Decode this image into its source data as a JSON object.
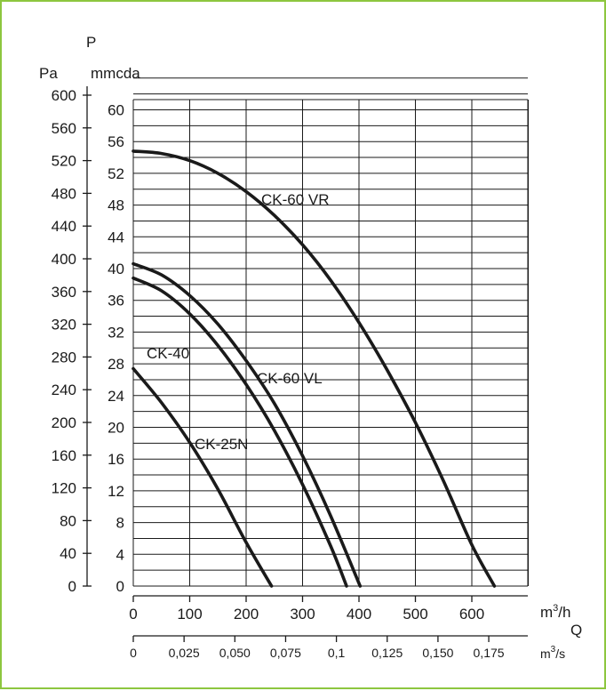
{
  "chart_data": {
    "type": "line",
    "axis": {
      "p_symbol": "P",
      "pa_unit": "Pa",
      "mmcda_unit": "mmcda",
      "q_symbol": "Q",
      "mh_unit_base": "m",
      "mh_unit_sup": "3",
      "mh_unit_tail": "/h",
      "ms_unit_base": "m",
      "ms_unit_sup": "3",
      "ms_unit_tail": "/s",
      "pa_ticks": [
        "600",
        "560",
        "520",
        "480",
        "440",
        "400",
        "360",
        "320",
        "280",
        "240",
        "200",
        "160",
        "120",
        "80",
        "40",
        "0"
      ],
      "mmcda_ticks": [
        "60",
        "56",
        "52",
        "48",
        "44",
        "40",
        "36",
        "32",
        "28",
        "24",
        "20",
        "16",
        "12",
        "8",
        "4",
        "0"
      ],
      "mh_ticks": [
        "0",
        "100",
        "200",
        "300",
        "400",
        "500",
        "600"
      ],
      "ms_ticks": [
        "0",
        "0,025",
        "0,050",
        "0,075",
        "0,1",
        "0,125",
        "0,150",
        "0,175"
      ],
      "x_range_m3h": [
        0,
        700
      ],
      "y_range_mmcda": [
        0,
        64
      ]
    },
    "series": [
      {
        "name": "CK-60 VR",
        "x": [
          0,
          50,
          100,
          150,
          200,
          250,
          300,
          350,
          400,
          450,
          500,
          550,
          600,
          640
        ],
        "y": [
          54.8,
          54.5,
          53.6,
          52.0,
          49.7,
          46.7,
          43.0,
          38.5,
          33.2,
          27.2,
          20.6,
          13.2,
          5.2,
          0
        ]
      },
      {
        "name": "CK-60 VL",
        "x": [
          0,
          50,
          100,
          150,
          200,
          250,
          300,
          350,
          402
        ],
        "y": [
          40.6,
          39.2,
          36.6,
          33.0,
          28.4,
          23.0,
          16.4,
          8.8,
          0
        ]
      },
      {
        "name": "CK-40",
        "x": [
          0,
          50,
          100,
          150,
          200,
          250,
          300,
          350,
          378
        ],
        "y": [
          38.8,
          37.2,
          34.3,
          30.3,
          25.4,
          19.6,
          12.8,
          5.0,
          0
        ]
      },
      {
        "name": "CK-25N",
        "x": [
          0,
          50,
          100,
          150,
          200,
          245
        ],
        "y": [
          27.4,
          23.1,
          18.1,
          12.2,
          5.5,
          0
        ]
      }
    ],
    "grid": true
  }
}
